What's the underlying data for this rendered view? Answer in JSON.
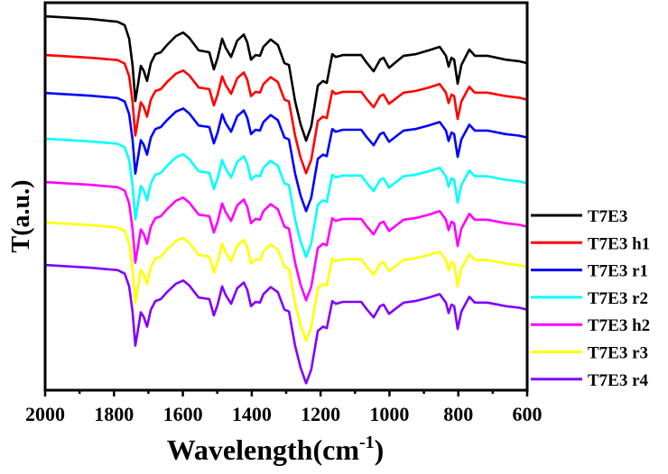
{
  "chart_data": {
    "type": "line",
    "title": "",
    "xlabel": "Wavelength(cm",
    "xlabel_superscript": "-1",
    "xlabel_suffix": ")",
    "ylabel": "T(a.u.)",
    "xlim": [
      2000,
      600
    ],
    "ylim": [
      0,
      100
    ],
    "x_reversed": true,
    "grid": false,
    "y_ticks_shown": false,
    "x_ticks": [
      2000,
      1800,
      1600,
      1400,
      1200,
      1000,
      800,
      600
    ],
    "x_tick_labels": [
      "2000",
      "1800",
      "1600",
      "1400",
      "1200",
      "1000",
      "800",
      "600"
    ],
    "x_minor_ticks": [
      1900,
      1700,
      1500,
      1300,
      1100,
      900,
      700
    ],
    "legend_position": "right",
    "x": [
      2000,
      1869,
      1790,
      1769,
      1756,
      1746,
      1738,
      1730,
      1722,
      1714,
      1704,
      1693,
      1680,
      1664,
      1646,
      1620,
      1599,
      1581,
      1554,
      1523,
      1510,
      1499,
      1486,
      1476,
      1460,
      1442,
      1423,
      1413,
      1402,
      1389,
      1376,
      1366,
      1345,
      1324,
      1305,
      1292,
      1274,
      1258,
      1242,
      1227,
      1208,
      1193,
      1182,
      1166,
      1156,
      1135,
      1109,
      1082,
      1067,
      1046,
      1027,
      1017,
      1001,
      978,
      959,
      925,
      886,
      854,
      836,
      828,
      820,
      812,
      802,
      791,
      768,
      752,
      715,
      663,
      624,
      600
    ],
    "series": [
      {
        "name": "T7E3",
        "color": "#000000",
        "values": [
          96.5,
          95.8,
          95.1,
          94.2,
          90.7,
          83.7,
          74.6,
          79.1,
          83.7,
          82.5,
          79.8,
          84.4,
          86.7,
          87.2,
          89.1,
          91.4,
          92.3,
          90.9,
          87.7,
          87.2,
          82.8,
          85.8,
          90.7,
          88.4,
          86.0,
          90.2,
          91.8,
          89.8,
          85.3,
          86.5,
          86.3,
          88.6,
          90.5,
          89.1,
          84.4,
          83.9,
          74.6,
          68.6,
          64.4,
          68.1,
          78.6,
          79.8,
          79.3,
          86.7,
          86.0,
          86.5,
          86.5,
          86.5,
          84.6,
          82.3,
          85.3,
          85.8,
          83.2,
          84.9,
          86.3,
          86.7,
          87.7,
          88.6,
          86.3,
          83.5,
          85.8,
          85.3,
          79.1,
          83.9,
          87.9,
          86.3,
          86.3,
          85.3,
          84.9,
          84.4
        ]
      },
      {
        "name": "T7E3 h1",
        "color": "#ff0000",
        "values": [
          86.5,
          85.8,
          85.2,
          84.3,
          81.0,
          74.3,
          65.7,
          70.0,
          74.3,
          73.2,
          70.6,
          75.0,
          77.2,
          77.7,
          79.5,
          81.7,
          82.5,
          81.2,
          78.1,
          77.7,
          73.5,
          76.3,
          81.0,
          78.8,
          76.5,
          80.5,
          82.0,
          80.1,
          75.9,
          77.0,
          76.8,
          79.0,
          80.8,
          79.5,
          75.0,
          74.5,
          65.7,
          60.0,
          56.0,
          59.5,
          69.5,
          70.6,
          70.2,
          77.2,
          76.5,
          77.0,
          77.0,
          77.0,
          75.2,
          73.0,
          75.9,
          76.3,
          73.9,
          75.5,
          76.8,
          77.2,
          78.1,
          79.0,
          76.8,
          74.1,
          76.3,
          75.9,
          70.0,
          74.5,
          78.3,
          76.8,
          76.8,
          75.9,
          75.5,
          75.0
        ]
      },
      {
        "name": "T7E3 r1",
        "color": "#0000ff",
        "values": [
          76.7,
          76.0,
          75.4,
          74.5,
          71.2,
          64.5,
          55.9,
          60.2,
          64.5,
          63.4,
          60.8,
          65.2,
          67.4,
          67.9,
          69.7,
          71.9,
          72.7,
          71.4,
          68.3,
          67.9,
          63.7,
          66.5,
          71.2,
          69.0,
          66.7,
          70.7,
          72.2,
          70.3,
          66.1,
          67.2,
          67.0,
          69.2,
          71.0,
          69.7,
          65.2,
          64.7,
          55.9,
          50.2,
          46.2,
          49.7,
          59.7,
          60.8,
          60.4,
          67.4,
          66.7,
          67.2,
          67.2,
          67.2,
          65.4,
          63.2,
          66.1,
          66.5,
          64.1,
          65.7,
          67.0,
          67.4,
          68.3,
          69.2,
          67.0,
          64.3,
          66.5,
          66.1,
          60.2,
          64.7,
          68.5,
          67.0,
          67.0,
          66.1,
          65.7,
          65.2
        ]
      },
      {
        "name": "T7E3 r2",
        "color": "#00ffff",
        "values": [
          64.9,
          64.2,
          63.6,
          62.7,
          59.4,
          52.7,
          44.1,
          48.4,
          52.7,
          51.6,
          49.0,
          53.4,
          55.6,
          56.1,
          57.9,
          60.1,
          60.9,
          59.6,
          56.5,
          56.1,
          51.9,
          54.7,
          59.4,
          57.2,
          54.9,
          58.9,
          60.4,
          58.5,
          54.3,
          55.4,
          55.2,
          57.4,
          59.2,
          57.9,
          53.4,
          52.9,
          44.1,
          38.4,
          34.4,
          37.9,
          47.9,
          49.0,
          48.6,
          55.6,
          54.9,
          55.4,
          55.4,
          55.4,
          53.6,
          51.4,
          54.3,
          54.7,
          52.3,
          53.9,
          55.2,
          55.6,
          56.5,
          57.4,
          55.2,
          52.5,
          54.7,
          54.3,
          48.4,
          52.9,
          56.7,
          55.2,
          55.2,
          54.3,
          53.9,
          53.4
        ]
      },
      {
        "name": "T7E3 h2",
        "color": "#ff00ff",
        "values": [
          53.7,
          53.0,
          52.4,
          51.5,
          48.2,
          41.5,
          32.9,
          37.2,
          41.5,
          40.4,
          37.8,
          42.2,
          44.4,
          44.9,
          46.7,
          48.9,
          49.7,
          48.4,
          45.3,
          44.9,
          40.7,
          43.5,
          48.2,
          46.0,
          43.7,
          47.7,
          49.2,
          47.3,
          43.1,
          44.2,
          44.0,
          46.2,
          48.0,
          46.7,
          42.2,
          41.7,
          32.9,
          27.2,
          23.2,
          26.7,
          36.7,
          37.8,
          37.4,
          44.4,
          43.7,
          44.2,
          44.2,
          44.2,
          42.4,
          40.2,
          43.1,
          43.5,
          41.1,
          42.7,
          44.0,
          44.4,
          45.3,
          46.2,
          44.0,
          41.3,
          43.5,
          43.1,
          37.2,
          41.7,
          45.5,
          44.0,
          44.0,
          43.1,
          42.7,
          42.2
        ]
      },
      {
        "name": "T7E3 r3",
        "color": "#ffff00",
        "values": [
          43.3,
          42.6,
          42.0,
          41.1,
          37.8,
          31.1,
          22.5,
          26.8,
          31.1,
          30.0,
          27.4,
          31.8,
          34.0,
          34.5,
          36.3,
          38.5,
          39.3,
          38.0,
          34.9,
          34.5,
          30.3,
          33.1,
          37.8,
          35.6,
          33.3,
          37.3,
          38.8,
          36.9,
          32.7,
          33.8,
          33.6,
          35.8,
          37.6,
          36.3,
          31.8,
          31.3,
          22.5,
          16.8,
          12.8,
          16.3,
          26.3,
          27.4,
          27.0,
          34.0,
          33.3,
          33.8,
          33.8,
          33.8,
          32.0,
          29.8,
          32.7,
          33.1,
          30.7,
          32.3,
          33.6,
          34.0,
          34.9,
          35.8,
          33.6,
          30.9,
          33.1,
          32.7,
          26.8,
          31.3,
          35.1,
          33.6,
          33.6,
          32.7,
          32.3,
          31.8
        ]
      },
      {
        "name": "T7E3 r4",
        "color": "#8000ff",
        "values": [
          32.3,
          31.6,
          31.0,
          30.1,
          26.8,
          20.1,
          11.5,
          15.8,
          20.1,
          19.0,
          16.4,
          20.8,
          23.0,
          23.5,
          25.3,
          27.5,
          28.3,
          27.0,
          23.9,
          23.5,
          19.3,
          22.1,
          26.8,
          24.6,
          22.3,
          26.3,
          27.8,
          25.9,
          21.7,
          22.8,
          22.6,
          24.8,
          26.6,
          25.3,
          20.8,
          20.3,
          11.5,
          5.8,
          1.8,
          5.3,
          15.3,
          16.4,
          16.0,
          23.0,
          22.3,
          22.8,
          22.8,
          22.8,
          21.0,
          18.8,
          21.7,
          22.1,
          19.7,
          21.3,
          22.6,
          23.0,
          23.9,
          24.8,
          22.6,
          19.9,
          22.1,
          21.7,
          15.8,
          20.3,
          24.1,
          22.6,
          22.6,
          21.7,
          21.3,
          20.8
        ]
      }
    ]
  }
}
